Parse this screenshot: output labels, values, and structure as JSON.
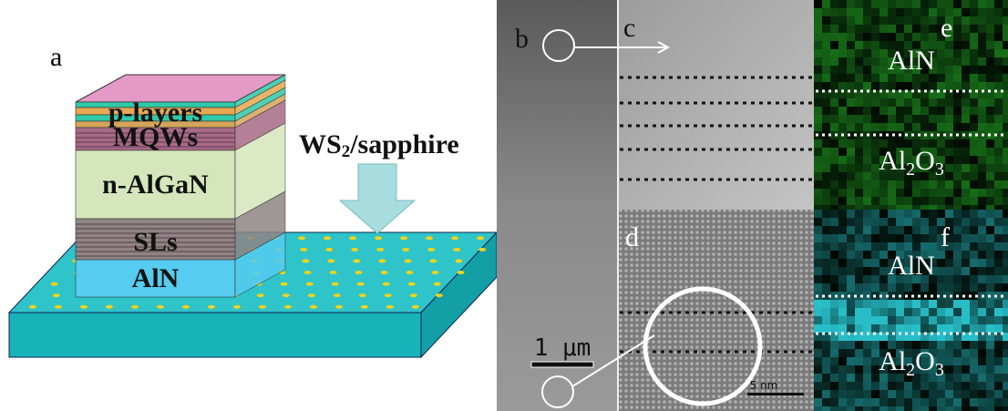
{
  "schematic": {
    "label": "a",
    "layers": [
      "p-layers",
      "MQWs",
      "n-AlGaN",
      "SLs",
      "AlN"
    ],
    "substrate": [
      "WS",
      "2",
      "/sapphire"
    ]
  },
  "tem": {
    "b": {
      "label": "b",
      "scale_bar": "1 μm"
    },
    "c": {
      "label": "c"
    },
    "d": {
      "label": "d",
      "scale_bar": "5 nm"
    },
    "e": {
      "label": "e",
      "top": "AlN",
      "bottom": [
        "Al",
        "2",
        "O",
        "3"
      ]
    },
    "f": {
      "label": "f",
      "top": "AlN",
      "bottom": [
        "Al",
        "2",
        "O",
        "3"
      ]
    }
  }
}
